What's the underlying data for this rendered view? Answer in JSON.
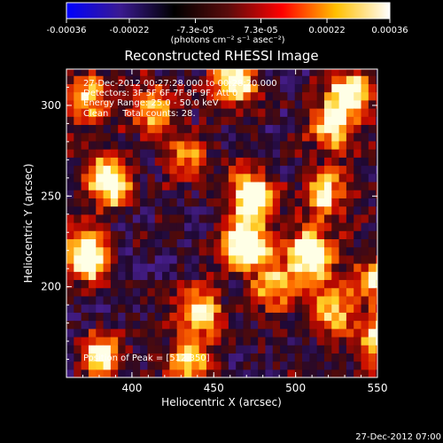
{
  "chart_data": {
    "type": "heatmap",
    "title": "Reconstructed RHESSI Image",
    "xlabel": "Heliocentric X (arcsec)",
    "ylabel": "Heliocentric Y (arcsec)",
    "xlim": [
      360,
      550
    ],
    "ylim": [
      150,
      320
    ],
    "x_ticks": [
      400,
      450,
      500,
      550
    ],
    "y_ticks": [
      200,
      250,
      300
    ],
    "colorbar": {
      "range": [
        -0.00036,
        0.00036
      ],
      "tick_values": [
        -0.00036,
        -0.00022,
        -7.3e-05,
        7.3e-05,
        0.00022,
        0.00036
      ],
      "tick_labels": [
        "-0.00036",
        "-0.00022",
        "-7.3e-05",
        "7.3e-05",
        "0.00022",
        "0.00036"
      ],
      "unit_label": "(photons cm⁻² s⁻¹ asec⁻²)",
      "colors": [
        "#0000ff",
        "#3a1a90",
        "#000000",
        "#5a0c0c",
        "#ff0000",
        "#ffc000",
        "#ffffff"
      ]
    },
    "annotations": [
      "27-Dec-2012 00:27:28.000 to 00:28:20.000",
      "Detectors: 3F 5F 6F 7F 8F 9F, Att 0",
      "Energy Range: 25.0 - 50.0 keV",
      "Clean     Total counts: 28.",
      "Position of Peak = [512,350]"
    ],
    "sources": [
      {
        "x": 470,
        "y": 248,
        "strength": 0.82
      },
      {
        "x": 468,
        "y": 220,
        "strength": 1.0
      },
      {
        "x": 507,
        "y": 215,
        "strength": 0.88
      },
      {
        "x": 384,
        "y": 256,
        "strength": 0.9
      },
      {
        "x": 370,
        "y": 215,
        "strength": 0.9
      },
      {
        "x": 378,
        "y": 160,
        "strength": 0.62
      },
      {
        "x": 372,
        "y": 303,
        "strength": 0.55
      },
      {
        "x": 460,
        "y": 312,
        "strength": 0.72
      },
      {
        "x": 530,
        "y": 305,
        "strength": 0.72
      },
      {
        "x": 520,
        "y": 286,
        "strength": 0.6
      },
      {
        "x": 516,
        "y": 250,
        "strength": 0.62
      },
      {
        "x": 545,
        "y": 202,
        "strength": 0.58
      },
      {
        "x": 548,
        "y": 170,
        "strength": 0.62
      },
      {
        "x": 520,
        "y": 185,
        "strength": 0.5
      },
      {
        "x": 440,
        "y": 185,
        "strength": 0.55
      },
      {
        "x": 430,
        "y": 270,
        "strength": 0.45
      },
      {
        "x": 412,
        "y": 296,
        "strength": 0.5
      },
      {
        "x": 432,
        "y": 158,
        "strength": 0.58
      },
      {
        "x": 486,
        "y": 198,
        "strength": 0.55
      }
    ],
    "grid": false,
    "legend": "colorbar-top"
  },
  "footer_date": "27-Dec-2012 07:00"
}
